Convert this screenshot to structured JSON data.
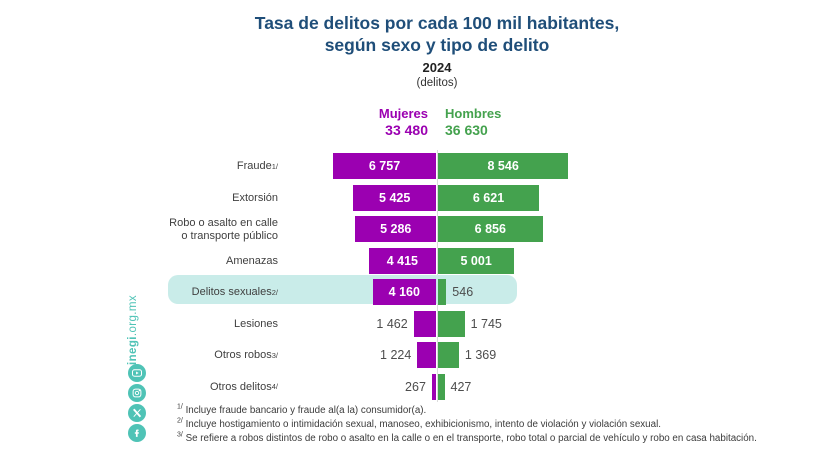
{
  "page": {
    "title": "Tasa de delitos por cada 100 mil habitantes, según sexo y tipo de delito",
    "year": "2024",
    "unit": "(delitos)"
  },
  "legend": {
    "mujeres_label": "Mujeres",
    "mujeres_total": "33 480",
    "hombres_label": "Hombres",
    "hombres_total": "36 630"
  },
  "chart_data": {
    "type": "bar",
    "layout": "diverging-horizontal",
    "title": "Tasa de delitos por cada 100 mil habitantes, según sexo y tipo de delito",
    "year": "2024",
    "units": "delitos",
    "legend_position": "top-center",
    "grid": false,
    "series": [
      {
        "name": "Mujeres",
        "total": 33480,
        "total_display": "33 480",
        "color": "#9B00B1",
        "values": [
          6757,
          5425,
          5286,
          4415,
          4160,
          1462,
          1224,
          267
        ]
      },
      {
        "name": "Hombres",
        "total": 36630,
        "total_display": "36 630",
        "color": "#44A24E",
        "values": [
          8546,
          6621,
          6856,
          5001,
          546,
          1745,
          1369,
          427
        ]
      }
    ],
    "categories": [
      "Fraude",
      "Extorsión",
      "Robo o asalto en calle o transporte público",
      "Amenazas",
      "Delitos sexuales",
      "Lesiones",
      "Otros robos",
      "Otros delitos"
    ],
    "rows": [
      {
        "category": "Fraude",
        "sup": "1/",
        "mujeres": 6757,
        "hombres": 8546,
        "mujeres_display": "6 757",
        "hombres_display": "8 546",
        "highlighted": false
      },
      {
        "category": "Extorsión",
        "sup": "",
        "mujeres": 5425,
        "hombres": 6621,
        "mujeres_display": "5 425",
        "hombres_display": "6 621",
        "highlighted": false
      },
      {
        "category": "Robo o asalto en calle o transporte público",
        "lines": [
          "Robo o asalto en calle",
          "o transporte público"
        ],
        "sup": "",
        "mujeres": 5286,
        "hombres": 6856,
        "mujeres_display": "5 286",
        "hombres_display": "6 856",
        "highlighted": false
      },
      {
        "category": "Amenazas",
        "sup": "",
        "mujeres": 4415,
        "hombres": 5001,
        "mujeres_display": "4 415",
        "hombres_display": "5 001",
        "highlighted": false
      },
      {
        "category": "Delitos sexuales",
        "sup": "2/",
        "mujeres": 4160,
        "hombres": 546,
        "mujeres_display": "4 160",
        "hombres_display": "546",
        "highlighted": true
      },
      {
        "category": "Lesiones",
        "sup": "",
        "mujeres": 1462,
        "hombres": 1745,
        "mujeres_display": "1 462",
        "hombres_display": "1 745",
        "highlighted": false
      },
      {
        "category": "Otros robos",
        "sup": "3/",
        "mujeres": 1224,
        "hombres": 1369,
        "mujeres_display": "1 224",
        "hombres_display": "1 369",
        "highlighted": false
      },
      {
        "category": "Otros delitos",
        "sup": "4/",
        "mujeres": 267,
        "hombres": 427,
        "mujeres_display": "267",
        "hombres_display": "427",
        "highlighted": false
      }
    ],
    "highlight_color": "#C9ECE9"
  },
  "footnotes": [
    {
      "sup": "1/",
      "text": "Incluye fraude bancario y fraude al(a la) consumidor(a)."
    },
    {
      "sup": "2/",
      "text": "Incluye hostigamiento o intimidación sexual, manoseo, exhibicionismo, intento de violación y violación sexual."
    },
    {
      "sup": "3/",
      "text": "Se refiere a robos distintos de robo o asalto en la calle o en el transporte, robo total o parcial de vehículo y robo en casa habitación."
    }
  ],
  "sidebar": {
    "site_bold": "inegi",
    "site_rest": ".org.mx",
    "icons": [
      "youtube-icon",
      "instagram-icon",
      "x-icon",
      "facebook-icon"
    ]
  },
  "colors": {
    "title_blue": "#1F4E79",
    "mujeres_purple": "#9B00B1",
    "hombres_green": "#44A24E",
    "highlight_teal": "#C9ECE9",
    "brand_teal": "#4FC3B6",
    "value_gray": "#4d4d4d"
  }
}
